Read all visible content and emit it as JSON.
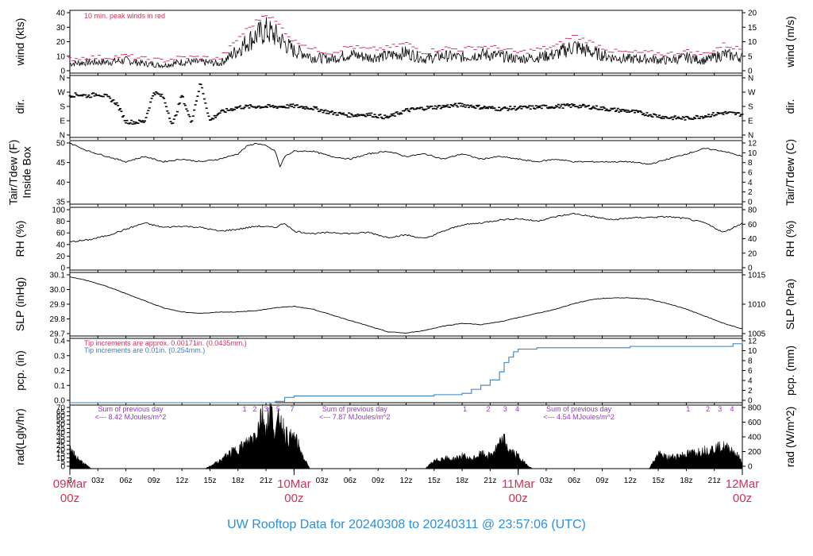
{
  "footer_title": "UW Rooftop Data for 20240308  to  20240311 @ 23:57:06  (UTC)",
  "colors": {
    "line": "#000000",
    "peak": "#cc3355",
    "precip_fine": "#cc3355",
    "precip_coarse": "#3a7fc0",
    "rad_notes": "#9933cc",
    "date": "#cc3355",
    "footer": "#2a8fd8"
  },
  "x_axis": {
    "hour_ticks": [
      {
        "h": 0,
        "label": "3"
      },
      {
        "h": 3,
        "label": "03z"
      },
      {
        "h": 6,
        "label": "06z"
      },
      {
        "h": 9,
        "label": "09z"
      },
      {
        "h": 12,
        "label": "12z"
      },
      {
        "h": 15,
        "label": "15z"
      },
      {
        "h": 18,
        "label": "18z"
      },
      {
        "h": 21,
        "label": "21z"
      },
      {
        "h": 27,
        "label": "03z"
      },
      {
        "h": 30,
        "label": "06z"
      },
      {
        "h": 33,
        "label": "09z"
      },
      {
        "h": 36,
        "label": "12z"
      },
      {
        "h": 39,
        "label": "15z"
      },
      {
        "h": 42,
        "label": "18z"
      },
      {
        "h": 45,
        "label": "21z"
      },
      {
        "h": 51,
        "label": "03z"
      },
      {
        "h": 54,
        "label": "06z"
      },
      {
        "h": 57,
        "label": "09z"
      },
      {
        "h": 60,
        "label": "12z"
      },
      {
        "h": 63,
        "label": "15z"
      },
      {
        "h": 66,
        "label": "18z"
      },
      {
        "h": 69,
        "label": "21z"
      }
    ],
    "date_labels": [
      {
        "h": 0,
        "date": "09Mar",
        "time": "00z"
      },
      {
        "h": 24,
        "date": "10Mar",
        "time": "00z"
      },
      {
        "h": 48,
        "date": "11Mar",
        "time": "00z"
      },
      {
        "h": 72,
        "date": "12Mar",
        "time": "00z"
      }
    ]
  },
  "chart_data": [
    {
      "type": "line",
      "panel": "wind",
      "ylabel_left": "wind (kts)",
      "ylabel_right": "wind (m/s)",
      "ylim": [
        0,
        40
      ],
      "yticks_left": [
        "0",
        "10",
        "20",
        "30",
        "40"
      ],
      "yticks_right": [
        "0",
        "5",
        "10",
        "15",
        "20"
      ],
      "annotation": "10 min. peak winds in red",
      "series": [
        {
          "hours": [
            0,
            2,
            4,
            6,
            8,
            10,
            12,
            14,
            16,
            17,
            18,
            19,
            20,
            21,
            22,
            23,
            24,
            25,
            26,
            28,
            30,
            32,
            34,
            36,
            38,
            40,
            42,
            44,
            46,
            48,
            50,
            52,
            54,
            56,
            58,
            60,
            62,
            64,
            66,
            68,
            70,
            72
          ],
          "values": [
            6,
            7,
            7,
            8,
            6,
            5,
            7,
            7,
            6,
            10,
            15,
            20,
            24,
            27,
            24,
            19,
            14,
            13,
            10,
            9,
            12,
            10,
            11,
            13,
            9,
            11,
            10,
            12,
            11,
            9,
            10,
            12,
            17,
            13,
            10,
            9,
            9,
            8,
            10,
            8,
            12,
            10
          ]
        },
        {
          "name": "peak",
          "hours": [
            0,
            2,
            4,
            6,
            8,
            10,
            12,
            14,
            16,
            17,
            18,
            19,
            20,
            21,
            22,
            23,
            24,
            25,
            26,
            28,
            30,
            32,
            34,
            36,
            38,
            40,
            42,
            44,
            46,
            48,
            50,
            52,
            54,
            56,
            58,
            60,
            62,
            64,
            66,
            68,
            70,
            72
          ],
          "values": [
            9,
            10,
            10,
            11,
            9,
            8,
            10,
            10,
            9,
            15,
            22,
            28,
            33,
            38,
            33,
            27,
            20,
            19,
            15,
            13,
            17,
            15,
            16,
            19,
            13,
            16,
            15,
            17,
            16,
            13,
            15,
            17,
            24,
            19,
            14,
            13,
            13,
            12,
            14,
            12,
            18,
            15
          ]
        }
      ]
    },
    {
      "type": "scatter",
      "panel": "dir",
      "ylabel_left": "dir.",
      "ylabel_right": "dir.",
      "yticks_left": [
        "N",
        "E",
        "S",
        "W",
        "N"
      ],
      "yticks_right": [
        "N",
        "E",
        "S",
        "W",
        "N"
      ],
      "series": [
        {
          "hours": [
            0,
            1,
            2,
            3,
            4,
            5,
            6,
            7,
            8,
            9,
            10,
            11,
            12,
            13,
            14,
            15,
            16,
            18,
            20,
            22,
            24,
            26,
            28,
            30,
            32,
            34,
            36,
            38,
            40,
            42,
            44,
            46,
            48,
            50,
            52,
            54,
            56,
            58,
            60,
            62,
            64,
            66,
            68,
            70,
            72
          ],
          "values": [
            250,
            255,
            245,
            260,
            240,
            200,
            85,
            80,
            85,
            270,
            240,
            60,
            250,
            80,
            330,
            90,
            140,
            175,
            180,
            178,
            182,
            170,
            140,
            125,
            130,
            110,
            155,
            170,
            180,
            190,
            175,
            165,
            170,
            175,
            180,
            185,
            175,
            160,
            150,
            130,
            110,
            105,
            120,
            140,
            130
          ]
        }
      ]
    },
    {
      "type": "line",
      "panel": "temp",
      "ylabel_left": "Tair/Tdew (F)\nInside Box",
      "ylabel_right": "Tair/Tdew (C)",
      "ylim": [
        30,
        54
      ],
      "yticks_left": [
        "35",
        "40",
        "45",
        "50"
      ],
      "yticks_right": [
        "0",
        "2",
        "4",
        "6",
        "8",
        "10",
        "12"
      ],
      "series": [
        {
          "hours": [
            0,
            2,
            4,
            6,
            8,
            10,
            12,
            14,
            16,
            18,
            19,
            20,
            21,
            22,
            22.5,
            23,
            24,
            26,
            28,
            30,
            32,
            34,
            36,
            38,
            40,
            42,
            44,
            46,
            48,
            50,
            52,
            54,
            56,
            58,
            60,
            62,
            64,
            66,
            68,
            70,
            72
          ],
          "values": [
            53,
            50,
            48,
            46,
            48,
            46,
            47,
            46,
            47,
            49,
            52,
            53,
            52,
            50,
            44,
            48,
            50,
            50,
            48,
            47,
            49,
            50,
            48,
            49,
            47,
            49,
            47,
            48,
            47,
            46,
            47,
            46,
            46,
            46,
            46,
            45,
            47,
            49,
            51,
            50,
            48
          ]
        }
      ]
    },
    {
      "type": "line",
      "panel": "rh",
      "ylabel_left": "RH (%)",
      "ylabel_right": "RH (%)",
      "ylim": [
        0,
        100
      ],
      "yticks_left": [
        "0",
        "20",
        "40",
        "60",
        "80",
        "100"
      ],
      "yticks_right": [
        "0",
        "20",
        "40",
        "60",
        "80"
      ],
      "series": [
        {
          "hours": [
            0,
            2,
            4,
            6,
            8,
            10,
            12,
            14,
            16,
            18,
            20,
            22,
            23,
            24,
            26,
            28,
            30,
            32,
            34,
            36,
            38,
            40,
            42,
            44,
            46,
            48,
            50,
            52,
            54,
            56,
            58,
            60,
            62,
            64,
            66,
            68,
            70,
            72
          ],
          "values": [
            45,
            48,
            55,
            65,
            75,
            68,
            70,
            68,
            62,
            65,
            70,
            68,
            75,
            62,
            58,
            60,
            58,
            60,
            52,
            56,
            50,
            62,
            72,
            75,
            80,
            82,
            78,
            85,
            90,
            85,
            80,
            83,
            84,
            85,
            82,
            75,
            60,
            75
          ]
        }
      ]
    },
    {
      "type": "line",
      "panel": "slp",
      "ylabel_left": "SLP (inHg)",
      "ylabel_right": "SLP (hPa)",
      "ylim": [
        29.65,
        30.1
      ],
      "yticks_left": [
        "29.7",
        "29.8",
        "29.9",
        "30.0",
        "30.1"
      ],
      "yticks_right": [
        "1005",
        "1010",
        "1015"
      ],
      "series": [
        {
          "hours": [
            0,
            2,
            4,
            6,
            8,
            10,
            12,
            14,
            16,
            18,
            20,
            22,
            24,
            26,
            28,
            30,
            32,
            34,
            36,
            38,
            40,
            42,
            44,
            46,
            48,
            50,
            52,
            54,
            56,
            58,
            60,
            62,
            64,
            66,
            68,
            70,
            72
          ],
          "values": [
            30.07,
            30.04,
            30.0,
            29.95,
            29.9,
            29.85,
            29.82,
            29.81,
            29.82,
            29.82,
            29.83,
            29.85,
            29.86,
            29.84,
            29.8,
            29.76,
            29.72,
            29.68,
            29.67,
            29.69,
            29.72,
            29.74,
            29.73,
            29.75,
            29.78,
            29.81,
            29.84,
            29.88,
            29.91,
            29.92,
            29.92,
            29.91,
            29.88,
            29.84,
            29.79,
            29.74,
            29.7
          ]
        }
      ]
    },
    {
      "type": "line",
      "panel": "precip",
      "ylabel_left": "pcp. (in)",
      "ylabel_right": "pcp. (mm)",
      "ylim": [
        0,
        0.48
      ],
      "yticks_left": [
        "0.0",
        "0.1",
        "0.2",
        "0.3",
        "0.4"
      ],
      "yticks_right": [
        "0",
        "2",
        "4",
        "6",
        "8",
        "10",
        "12"
      ],
      "note_fine": "Tip increments are approx. 0.00171in. (0.0435mm.)",
      "note_coarse": "Tip increments are 0.01in. (0.254mm.)",
      "series": [
        {
          "hours": [
            0,
            20,
            22,
            23,
            24,
            28,
            32,
            36,
            39,
            42,
            43,
            44,
            45,
            46,
            46.5,
            47,
            47.5,
            48,
            49,
            50,
            55,
            60,
            65,
            70,
            71,
            72
          ],
          "values": [
            0.0,
            0.0,
            0.01,
            0.04,
            0.05,
            0.05,
            0.05,
            0.05,
            0.06,
            0.07,
            0.1,
            0.13,
            0.17,
            0.23,
            0.3,
            0.34,
            0.38,
            0.4,
            0.4,
            0.41,
            0.41,
            0.42,
            0.42,
            0.42,
            0.44,
            0.46
          ]
        }
      ]
    },
    {
      "type": "area",
      "panel": "rad",
      "ylabel_left": "rad(Lgly/hr)",
      "ylabel_right": "rad (W/m^2)",
      "ylim": [
        0,
        70
      ],
      "yticks_left": [
        "0",
        "5",
        "10",
        "15",
        "20",
        "25",
        "30",
        "35",
        "40",
        "45",
        "50",
        "55",
        "60",
        "65",
        "70"
      ],
      "yticks_right": [
        "0",
        "200",
        "400",
        "600",
        "800"
      ],
      "day_sums": [
        {
          "h": 6.5,
          "title": "Sum of previous day",
          "value": "<--- 8.42 MJoules/m^2"
        },
        {
          "h": 30.5,
          "title": "Sum of previous day",
          "value": "<--- 7.87 MJoules/m^2"
        },
        {
          "h": 54.5,
          "title": "Sum of previous day",
          "value": "<--- 4.54 MJoules/m^2"
        }
      ],
      "hour_marks": [
        {
          "h": 18.7,
          "label": "1"
        },
        {
          "h": 19.8,
          "label": "2"
        },
        {
          "h": 21.0,
          "label": "3"
        },
        {
          "h": 22.3,
          "label": "5"
        },
        {
          "h": 23.8,
          "label": "7"
        },
        {
          "h": 42.3,
          "label": "1"
        },
        {
          "h": 44.8,
          "label": "2"
        },
        {
          "h": 46.6,
          "label": "3"
        },
        {
          "h": 47.9,
          "label": "4"
        },
        {
          "h": 66.2,
          "label": "1"
        },
        {
          "h": 68.3,
          "label": "2"
        },
        {
          "h": 69.6,
          "label": "3"
        },
        {
          "h": 70.9,
          "label": "4"
        }
      ],
      "series": [
        {
          "hours": [
            0,
            0.5,
            1,
            1.5,
            2,
            2.3,
            14.5,
            15,
            16,
            17,
            18,
            19,
            20,
            20.5,
            21,
            21.5,
            22,
            22.5,
            23,
            23.5,
            24,
            24.5,
            25,
            25.7,
            38,
            39,
            40,
            41,
            42,
            43,
            44,
            45,
            46,
            46.5,
            47,
            48,
            48.5,
            49,
            49.5,
            62,
            63,
            64,
            65,
            66,
            67,
            68,
            69,
            70,
            71,
            72
          ],
          "values": [
            20,
            15,
            10,
            6,
            2,
            0,
            0,
            3,
            8,
            16,
            22,
            28,
            40,
            62,
            45,
            66,
            38,
            58,
            40,
            33,
            35,
            25,
            12,
            0,
            0,
            8,
            12,
            10,
            14,
            10,
            16,
            14,
            26,
            32,
            20,
            14,
            8,
            4,
            0,
            0,
            16,
            12,
            14,
            16,
            18,
            20,
            22,
            24,
            20,
            8
          ]
        }
      ]
    }
  ]
}
